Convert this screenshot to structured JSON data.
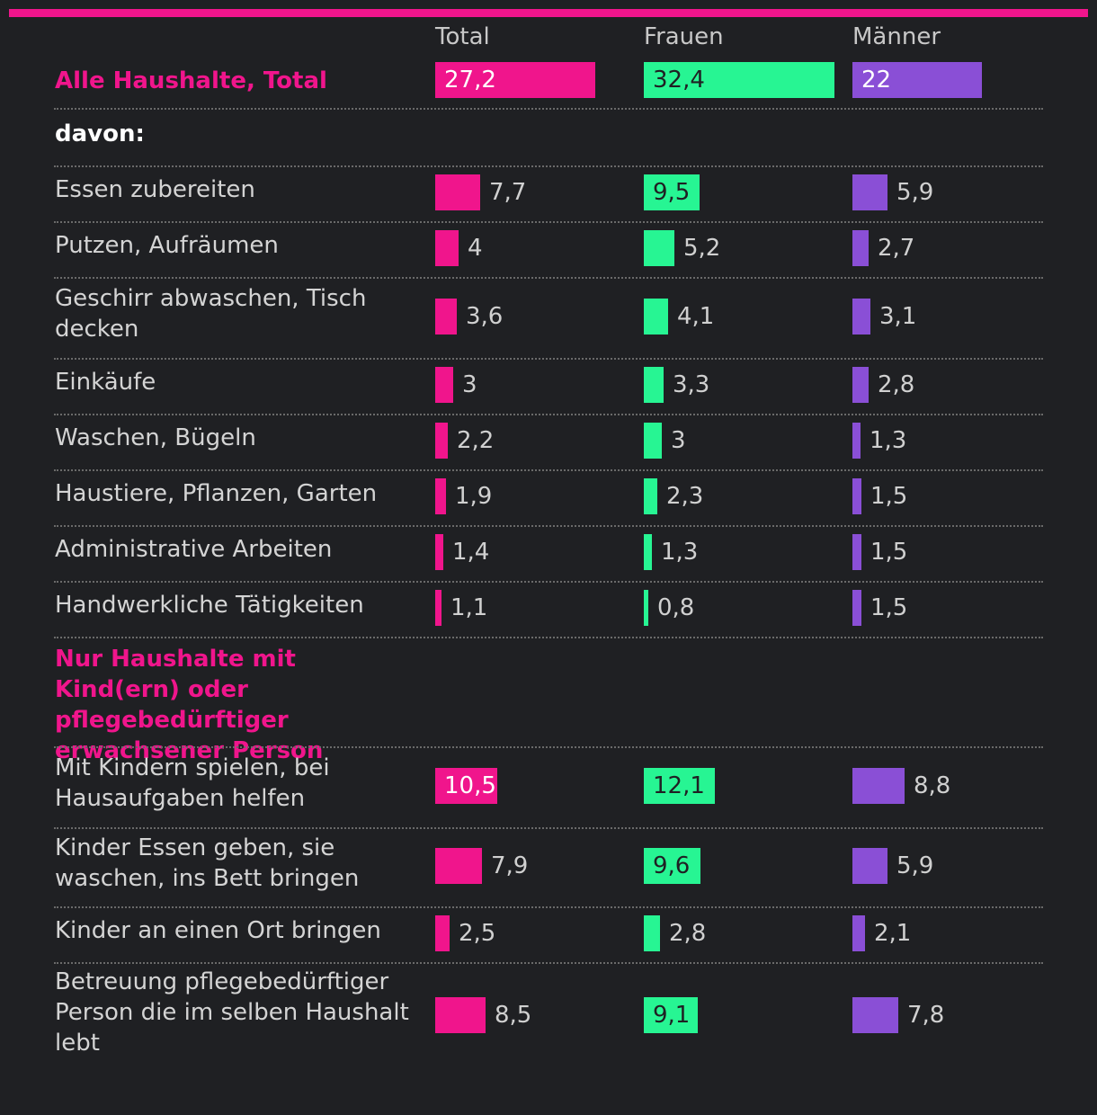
{
  "colors": {
    "accent": "#f0158c",
    "total": "#f0158c",
    "frauen": "#27f593",
    "maenner": "#8a4fd6",
    "background": "#1f2023"
  },
  "chart_data": {
    "type": "bar",
    "orientation": "horizontal",
    "columns": [
      "Total",
      "Frauen",
      "Männer"
    ],
    "xlim": [
      0,
      32.4
    ],
    "rows": [
      {
        "label": "Alle Haushalte, Total",
        "kind": "section",
        "values": [
          "27,2",
          "32,4",
          "22"
        ]
      },
      {
        "label": "davon:",
        "kind": "subheading"
      },
      {
        "label": "Essen zubereiten",
        "kind": "data",
        "values": [
          "7,7",
          "9,5",
          "5,9"
        ]
      },
      {
        "label": "Putzen, Aufräumen",
        "kind": "data",
        "values": [
          "4",
          "5,2",
          "2,7"
        ]
      },
      {
        "label": "Geschirr abwaschen, Tisch decken",
        "kind": "data",
        "values": [
          "3,6",
          "4,1",
          "3,1"
        ]
      },
      {
        "label": "Einkäufe",
        "kind": "data",
        "values": [
          "3",
          "3,3",
          "2,8"
        ]
      },
      {
        "label": "Waschen, Bügeln",
        "kind": "data",
        "values": [
          "2,2",
          "3",
          "1,3"
        ]
      },
      {
        "label": "Haustiere, Pflanzen, Garten",
        "kind": "data",
        "values": [
          "1,9",
          "2,3",
          "1,5"
        ]
      },
      {
        "label": "Administrative Arbeiten",
        "kind": "data",
        "values": [
          "1,4",
          "1,3",
          "1,5"
        ]
      },
      {
        "label": "Handwerkliche Tätigkeiten",
        "kind": "data",
        "values": [
          "1,1",
          "0,8",
          "1,5"
        ]
      },
      {
        "label": "Nur Haushalte mit Kind(ern) oder pflegebedürftiger erwachsener Person",
        "kind": "heading"
      },
      {
        "label": "Mit Kindern spielen, bei Hausaufgaben helfen",
        "kind": "data",
        "values": [
          "10,5",
          "12,1",
          "8,8"
        ]
      },
      {
        "label": "Kinder Essen geben, sie waschen, ins Bett bringen",
        "kind": "data",
        "values": [
          "7,9",
          "9,6",
          "5,9"
        ]
      },
      {
        "label": "Kinder an einen Ort bringen",
        "kind": "data",
        "values": [
          "2,5",
          "2,8",
          "2,1"
        ]
      },
      {
        "label": "Betreuung pflegebedürftiger Person die im selben Haushalt lebt",
        "kind": "data",
        "values": [
          "8,5",
          "9,1",
          "7,8"
        ]
      }
    ]
  }
}
